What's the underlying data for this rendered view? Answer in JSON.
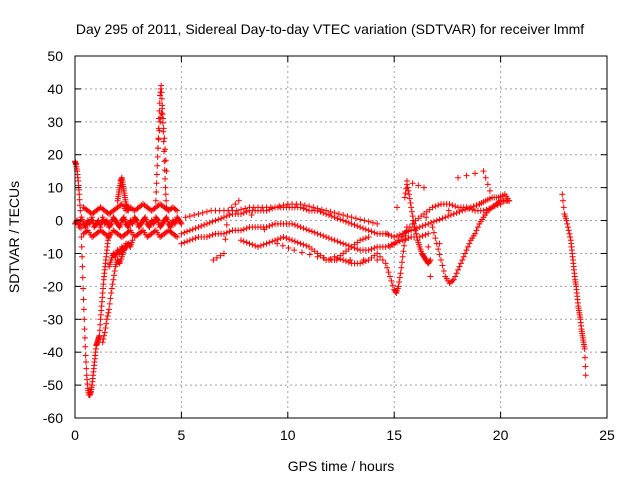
{
  "chart_data": {
    "type": "scatter",
    "title": "Day 295 of 2011, Sidereal Day-to-day VTEC variation (SDTVAR) for receiver lmmf",
    "xlabel": "GPS time / hours",
    "ylabel": "SDTVAR / TECUs",
    "xlim": [
      0,
      25
    ],
    "ylim": [
      -60,
      50
    ],
    "xticks": [
      0,
      5,
      10,
      15,
      20,
      25
    ],
    "yticks": [
      -60,
      -50,
      -40,
      -30,
      -20,
      -10,
      0,
      10,
      20,
      30,
      40,
      50
    ],
    "grid": true,
    "marker": "+",
    "color": "#ff0000",
    "series": [
      {
        "name": "SDTVAR",
        "segments": [
          {
            "x": [
              0.0,
              0.05,
              0.1,
              0.15,
              0.2,
              0.25,
              0.3,
              0.35,
              0.4,
              0.45,
              0.5,
              0.55,
              0.6,
              0.65,
              0.7,
              0.75,
              0.8,
              0.85,
              0.9,
              0.95,
              1.0,
              1.05,
              1.1,
              1.15,
              1.2,
              1.25,
              1.3,
              1.35,
              1.4,
              1.45,
              1.5,
              1.55,
              1.6
            ],
            "y": [
              18,
              17,
              15,
              12,
              8,
              3,
              -5,
              -14,
              -24,
              -33,
              -41,
              -47,
              -51,
              -53,
              -53,
              -52,
              -50,
              -47,
              -44,
              -41,
              -38,
              -37,
              -36,
              -35,
              -30,
              -26,
              -22,
              -18,
              -15,
              -12,
              -9,
              -6,
              -4
            ]
          },
          {
            "x": [
              0.0,
              0.1,
              0.2,
              0.3,
              0.4,
              0.5,
              0.6,
              0.7,
              0.8,
              0.9,
              1.0,
              1.1,
              1.2,
              1.3,
              1.4,
              1.5,
              1.6,
              1.7,
              1.8,
              1.9,
              2.0,
              2.1,
              2.2,
              2.3,
              2.4,
              2.5,
              2.6,
              2.7,
              2.8,
              2.9,
              3.0,
              3.1,
              3.2,
              3.3,
              3.4,
              3.5,
              3.6,
              3.7,
              3.8,
              3.9,
              4.0,
              4.1,
              4.2,
              4.3,
              4.4,
              4.5,
              4.6,
              4.7,
              4.8,
              4.9,
              5.0
            ],
            "y": [
              -1,
              0,
              -2,
              1,
              -1,
              -2,
              0,
              -1,
              1,
              -2,
              -1,
              0,
              -2,
              1,
              -1,
              0,
              -2,
              -1,
              1,
              0,
              -1,
              -2,
              0,
              1,
              -1,
              -2,
              0,
              -1,
              1,
              0,
              -2,
              -1,
              0,
              1,
              -1,
              -2,
              0,
              -1,
              1,
              0,
              -2,
              -1,
              0,
              1,
              -1,
              -2,
              0,
              -1,
              1,
              0,
              -1
            ]
          },
          {
            "x": [
              0.4,
              0.6,
              0.8,
              1.0,
              1.2,
              1.4,
              1.6,
              1.8,
              2.0,
              2.2,
              2.4,
              2.6,
              2.8,
              3.0,
              3.2,
              3.4,
              3.6,
              3.8,
              4.0,
              4.2,
              4.4,
              4.6,
              4.8
            ],
            "y": [
              4,
              3,
              2,
              3,
              4,
              3,
              2,
              3,
              4,
              5,
              3,
              4,
              3,
              4,
              5,
              4,
              3,
              4,
              5,
              4,
              3,
              4,
              3
            ]
          },
          {
            "x": [
              0.4,
              0.6,
              0.8,
              1.0,
              1.2,
              1.4,
              1.6,
              1.8,
              2.0,
              2.2,
              2.4,
              2.6,
              2.8,
              3.0,
              3.2,
              3.4,
              3.6,
              3.8,
              4.0,
              4.2,
              4.4,
              4.6,
              4.8
            ],
            "y": [
              -4,
              -3,
              -5,
              -4,
              -3,
              -4,
              -5,
              -3,
              -4,
              -5,
              -4,
              -3,
              -5,
              -4,
              -3,
              -5,
              -4,
              -3,
              -5,
              -4,
              -3,
              -4,
              -5
            ]
          },
          {
            "x": [
              1.3,
              1.4,
              1.5,
              1.6,
              1.7,
              1.8,
              1.9,
              2.0,
              2.1,
              2.2,
              2.3,
              2.4,
              2.5,
              2.6,
              2.7
            ],
            "y": [
              -37,
              -34,
              -30,
              -27,
              -22,
              -18,
              -14,
              -12,
              -13,
              -11,
              -9,
              -8,
              -7,
              -8,
              -6
            ]
          },
          {
            "x": [
              1.6,
              1.7,
              1.8,
              1.9,
              2.0,
              2.1,
              2.2,
              2.3,
              2.4
            ],
            "y": [
              -14,
              -12,
              -10,
              -11,
              -9,
              -10,
              -8,
              -9,
              -7
            ]
          },
          {
            "x": [
              2.0,
              2.05,
              2.1,
              2.15,
              2.2,
              2.25,
              2.3,
              2.35,
              2.4,
              2.45,
              2.5
            ],
            "y": [
              6,
              8,
              10,
              12,
              13,
              11,
              9,
              7,
              5,
              4,
              3
            ]
          },
          {
            "x": [
              3.8,
              3.85,
              3.9,
              3.95,
              4.0,
              4.05,
              4.1,
              4.15,
              4.2,
              4.25,
              4.3
            ],
            "y": [
              6,
              14,
              22,
              31,
              38,
              41,
              35,
              27,
              18,
              10,
              4
            ]
          },
          {
            "x": [
              3.9,
              4.0,
              4.1,
              4.2,
              4.3
            ],
            "y": [
              22,
              30,
              34,
              25,
              15
            ]
          },
          {
            "x": [
              5.0,
              5.4,
              5.8,
              6.2,
              6.6,
              7.0,
              7.4,
              7.8,
              8.2,
              8.6,
              9.0,
              9.4,
              9.8,
              10.2,
              10.6,
              11.0,
              11.4,
              11.8,
              12.2,
              12.6,
              13.0,
              13.4,
              13.8,
              14.2,
              14.6,
              15.0,
              15.4,
              15.8,
              16.2,
              16.6,
              17.0,
              17.4,
              17.8,
              18.2,
              18.6,
              19.0
            ],
            "y": [
              -4,
              -3,
              -2,
              -1,
              0,
              1,
              2,
              2,
              3,
              3,
              3,
              4,
              4,
              4,
              4,
              3,
              3,
              2,
              1,
              0,
              -1,
              -2,
              -3,
              -4,
              -4,
              -5,
              -4,
              -3,
              -2,
              -1,
              0,
              1,
              2,
              3,
              4,
              5
            ]
          },
          {
            "x": [
              5.0,
              5.4,
              5.8,
              6.2,
              6.6,
              7.0,
              7.4,
              7.8,
              8.2,
              8.6,
              9.0,
              9.4,
              9.8,
              10.2,
              10.6,
              11.0,
              11.4,
              11.8,
              12.2,
              12.6,
              13.0,
              13.4,
              13.8,
              14.2,
              14.6,
              15.0,
              15.4,
              15.8,
              16.2,
              16.6
            ],
            "y": [
              -7,
              -6,
              -5,
              -5,
              -4,
              -4,
              -3,
              -3,
              -2,
              -2,
              -2,
              -1,
              -1,
              -1,
              -2,
              -3,
              -4,
              -5,
              -6,
              -7,
              -8,
              -9,
              -9,
              -8,
              -8,
              -7,
              -6,
              -5,
              -5,
              -4
            ]
          },
          {
            "x": [
              5.2,
              5.8,
              6.4,
              7.0,
              7.6,
              8.2,
              8.8,
              9.4,
              10.0,
              10.6,
              11.2,
              11.8,
              12.4,
              13.0,
              13.6,
              14.2
            ],
            "y": [
              1,
              2,
              3,
              3,
              3,
              4,
              4,
              4,
              5,
              5,
              4,
              3,
              2,
              1,
              0,
              -1
            ]
          },
          {
            "x": [
              7.8,
              8.2,
              8.6,
              9.0,
              9.4,
              9.8,
              10.2,
              10.6,
              11.0,
              11.4,
              11.8,
              12.2,
              12.6,
              13.0,
              13.4,
              13.8
            ],
            "y": [
              -6,
              -7,
              -8,
              -7,
              -6,
              -5,
              -6,
              -7,
              -8,
              -10,
              -12,
              -12,
              -10,
              -8,
              -6,
              -5
            ]
          },
          {
            "x": [
              6.5,
              7.0,
              7.2,
              7.7,
              9.5,
              10.3,
              11.4,
              12.3,
              14.2,
              15.6,
              16.4,
              16.7,
              18.0,
              19.2,
              19.5
            ],
            "y": [
              -12,
              -10,
              3,
              6,
              -7,
              -9,
              -11,
              -12,
              -12,
              12,
              10,
              -17,
              13,
              15,
              9
            ]
          },
          {
            "x": [
              12.2,
              12.6,
              13.0,
              13.4,
              13.8,
              14.2,
              14.6,
              14.8,
              15.0,
              15.1,
              15.2,
              15.3,
              15.4,
              15.5,
              15.6
            ],
            "y": [
              -11,
              -12,
              -13,
              -13,
              -12,
              -10,
              -13,
              -17,
              -21,
              -22,
              -20,
              -16,
              -11,
              -6,
              -2
            ]
          },
          {
            "x": [
              15.5,
              15.6,
              15.7,
              15.8,
              15.9,
              16.0,
              16.1,
              16.2,
              16.3,
              16.4,
              16.5,
              16.6,
              16.7
            ],
            "y": [
              7,
              11,
              8,
              4,
              0,
              -3,
              -6,
              -8,
              -10,
              -11,
              -12,
              -13,
              -12
            ]
          },
          {
            "x": [
              14.8,
              15.2,
              15.6,
              16.0,
              16.4,
              16.8,
              17.2,
              17.6,
              18.0,
              18.4,
              18.8,
              19.2,
              19.6,
              20.0
            ],
            "y": [
              -8,
              -6,
              -3,
              0,
              2,
              4,
              5,
              5,
              4,
              4,
              3,
              3,
              4,
              5
            ]
          },
          {
            "x": [
              16.8,
              17.0,
              17.2,
              17.4,
              17.6,
              17.8,
              18.0,
              18.2,
              18.4,
              18.6,
              18.8,
              19.0,
              19.2,
              19.4,
              19.6,
              19.8,
              20.0,
              20.2,
              20.4
            ],
            "y": [
              -2,
              -7,
              -12,
              -17,
              -19,
              -18,
              -15,
              -12,
              -9,
              -6,
              -4,
              -1,
              1,
              3,
              4,
              5,
              6,
              6,
              6
            ]
          },
          {
            "x": [
              19.0,
              19.3,
              19.6,
              19.9,
              20.2,
              20.4
            ],
            "y": [
              5,
              6,
              7,
              7,
              8,
              6
            ]
          },
          {
            "x": [
              22.9,
              23.0,
              23.1,
              23.2,
              23.3,
              23.35,
              23.4,
              23.45,
              23.5,
              23.55,
              23.6,
              23.65,
              23.7,
              23.75,
              23.8,
              23.85,
              23.9,
              23.95,
              24.0
            ],
            "y": [
              8,
              2,
              0,
              -3,
              -6,
              -9,
              -12,
              -15,
              -18,
              -20,
              -23,
              -26,
              -28,
              -30,
              -33,
              -35,
              -37,
              -39,
              -47
            ]
          }
        ]
      }
    ]
  }
}
